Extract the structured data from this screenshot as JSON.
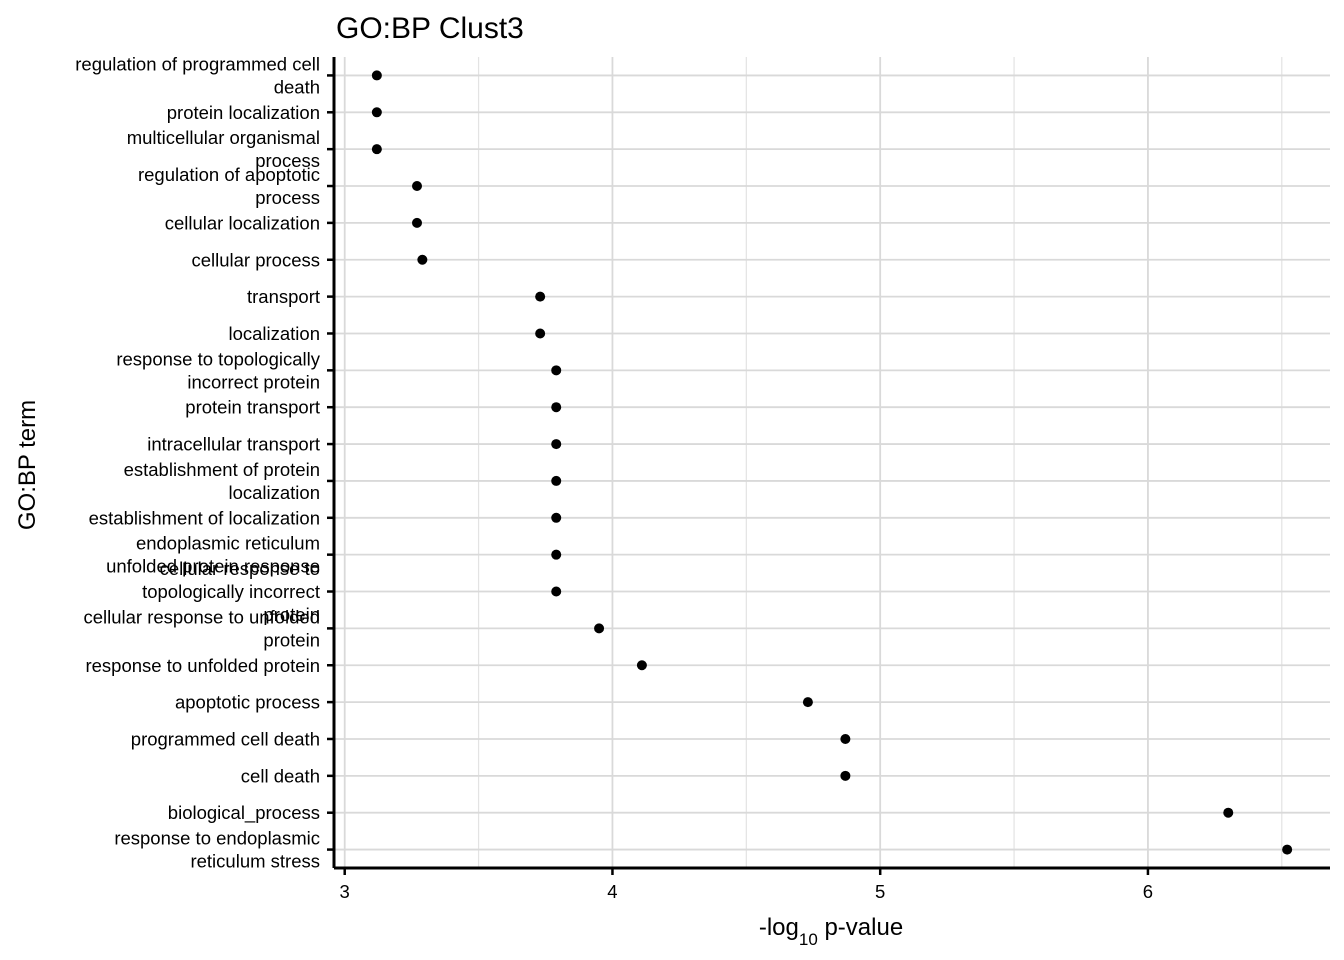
{
  "chart_data": {
    "type": "scatter",
    "title": "GO:BP Clust3",
    "xlabel": {
      "prefix": "-log",
      "sub": "10",
      "suffix": " p-value"
    },
    "ylabel": "GO:BP term",
    "xlim": [
      2.96,
      6.68
    ],
    "x_ticks": [
      3,
      4,
      5,
      6
    ],
    "grid": true,
    "legend": "none",
    "point_color": "#000000",
    "categories": [
      [
        "regulation of programmed cell",
        "death"
      ],
      [
        "protein localization"
      ],
      [
        "multicellular organismal",
        "process"
      ],
      [
        "regulation of apoptotic",
        "process"
      ],
      [
        "cellular localization"
      ],
      [
        "cellular process"
      ],
      [
        "transport"
      ],
      [
        "localization"
      ],
      [
        "response to topologically",
        "incorrect protein"
      ],
      [
        "protein transport"
      ],
      [
        "intracellular transport"
      ],
      [
        "establishment of protein",
        "localization"
      ],
      [
        "establishment of localization"
      ],
      [
        "endoplasmic reticulum",
        "unfolded protein response"
      ],
      [
        "cellular response to",
        "topologically incorrect",
        "protein"
      ],
      [
        "cellular response to unfolded",
        "protein"
      ],
      [
        "response to unfolded protein"
      ],
      [
        "apoptotic process"
      ],
      [
        "programmed cell death"
      ],
      [
        "cell death"
      ],
      [
        "biological_process"
      ],
      [
        "response to endoplasmic",
        "reticulum stress"
      ]
    ],
    "values": [
      3.12,
      3.12,
      3.12,
      3.27,
      3.27,
      3.29,
      3.73,
      3.73,
      3.79,
      3.79,
      3.79,
      3.79,
      3.79,
      3.79,
      3.79,
      3.95,
      4.11,
      4.73,
      4.87,
      4.87,
      6.3,
      6.52
    ]
  }
}
